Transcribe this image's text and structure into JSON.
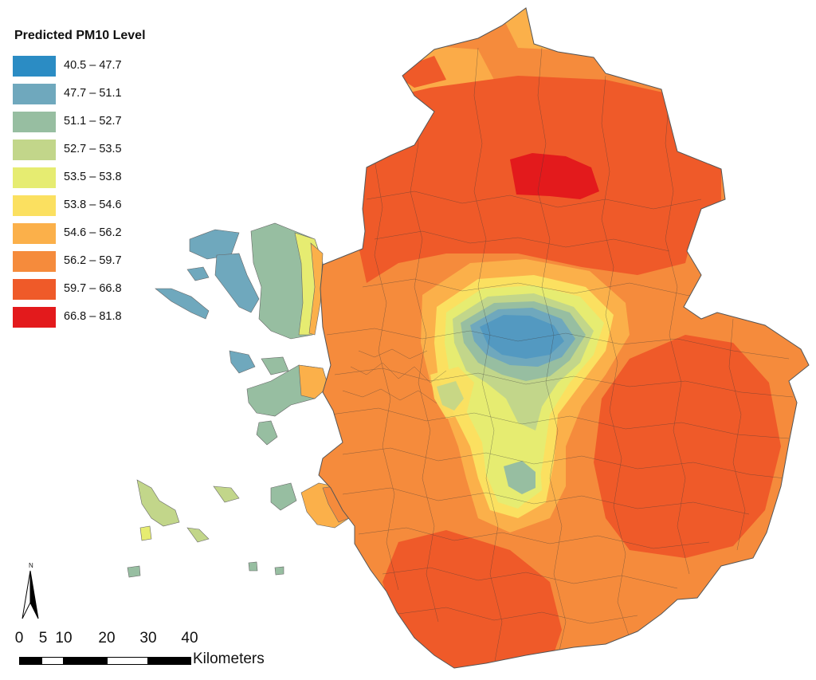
{
  "legend": {
    "title": "Predicted PM10 Level",
    "classes": [
      {
        "label": "40.5 – 47.7",
        "color": "#2b8cc4"
      },
      {
        "label": "47.7 – 51.1",
        "color": "#6fa8bd"
      },
      {
        "label": "51.1 – 52.7",
        "color": "#97bea1"
      },
      {
        "label": "52.7 – 53.5",
        "color": "#c2d68a"
      },
      {
        "label": "53.5 – 53.8",
        "color": "#e6ec71"
      },
      {
        "label": "53.8 – 54.6",
        "color": "#fbe060"
      },
      {
        "label": "54.6 – 56.2",
        "color": "#fbb04a"
      },
      {
        "label": "56.2 – 59.7",
        "color": "#f58b3c"
      },
      {
        "label": "59.7 – 66.8",
        "color": "#ef5a29"
      },
      {
        "label": "66.8 – 81.8",
        "color": "#e31a1c"
      }
    ]
  },
  "north_arrow": {
    "label": "N"
  },
  "scale_bar": {
    "ticks": [
      "0",
      "5",
      "10",
      "20",
      "30",
      "40"
    ],
    "units": "Kilometers"
  }
}
